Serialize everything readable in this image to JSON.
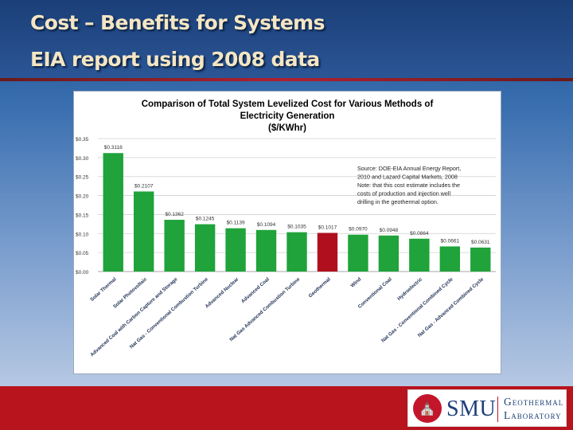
{
  "slide": {
    "title_line1": "Cost – Benefits for Systems",
    "title_line2": "EIA report using 2008 data"
  },
  "colors": {
    "bar_default": "#1fa33a",
    "bar_highlight": "#b0101e",
    "footer": "#b8141e"
  },
  "chart_data": {
    "type": "bar",
    "title": [
      "Comparison of Total System Levelized Cost for Various Methods of",
      "Electricity Generation",
      "($/KWhr)"
    ],
    "xlabel": "",
    "ylabel": "",
    "ylim": [
      0,
      0.35
    ],
    "yticks": [
      0,
      0.05,
      0.1,
      0.15,
      0.2,
      0.25,
      0.3,
      0.35
    ],
    "ytick_labels": [
      "$0.00",
      "$0.05",
      "$0.10",
      "$0.15",
      "$0.20",
      "$0.25",
      "$0.30",
      "$0.35"
    ],
    "categories": [
      "Solar Thermal",
      "Solar Photovoltaic",
      "Advanced Coal with Carbon Capture and Storage",
      "Nat Gas - Conventional Combustion Turbine",
      "Advanced Nuclear",
      "Advanced Coal",
      "Nat Gas Advanced Combustion Turbine",
      "Geothermal",
      "Wind",
      "Conventional Coal",
      "Hydroelectric",
      "Nat Gas - Conventional Combined Cycle",
      "Nat Gas - Advanced Combined Cycle"
    ],
    "values": [
      0.3118,
      0.2107,
      0.1362,
      0.1245,
      0.1139,
      0.1094,
      0.1035,
      0.1017,
      0.097,
      0.0948,
      0.0864,
      0.0661,
      0.0631
    ],
    "value_labels": [
      "$0.3118",
      "$0.2107",
      "$0.1362",
      "$0.1245",
      "$0.1139",
      "$0.1094",
      "$0.1035",
      "$0.1017",
      "$0.0970",
      "$0.0948",
      "$0.0864",
      "$0.0661",
      "$0.0631"
    ],
    "highlight_category": "Geothermal",
    "annotation": [
      "Source: DOE-EIA Annual Energy Report,",
      "2010 and Lazard Capital Markets, 2008",
      "Note: that this cost estimate includes the",
      "costs of  production and injection well",
      "drilling in the geothermal option."
    ],
    "grid": true,
    "legend": "none"
  },
  "logo": {
    "seal_glyph": "⛪",
    "name": "SMU",
    "line1": "Geothermal",
    "line2": "Laboratory"
  }
}
